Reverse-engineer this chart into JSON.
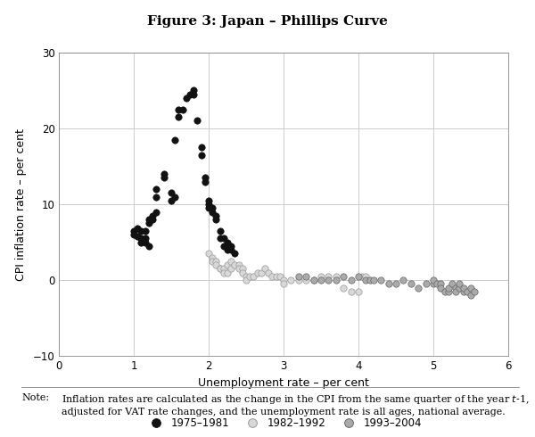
{
  "title": "Figure 3: Japan – Phillips Curve",
  "xlabel": "Unemployment rate – per cent",
  "ylabel": "CPI inflation rate – per cent",
  "xlim": [
    0,
    6
  ],
  "ylim": [
    -10,
    30
  ],
  "xticks": [
    0,
    1,
    2,
    3,
    4,
    5,
    6
  ],
  "yticks": [
    -10,
    0,
    10,
    20,
    30
  ],
  "series": [
    {
      "label": "1975–1981",
      "color": "#111111",
      "edge_color": "#111111",
      "marker": "o",
      "size": 28,
      "x": [
        1.0,
        1.0,
        1.05,
        1.05,
        1.1,
        1.1,
        1.1,
        1.15,
        1.15,
        1.15,
        1.2,
        1.2,
        1.2,
        1.25,
        1.25,
        1.3,
        1.3,
        1.3,
        1.4,
        1.4,
        1.5,
        1.5,
        1.55,
        1.55,
        1.6,
        1.6,
        1.65,
        1.7,
        1.75,
        1.8,
        1.8,
        1.85,
        1.9,
        1.9,
        1.95,
        1.95,
        2.0,
        2.0,
        2.0,
        2.05,
        2.05,
        2.1,
        2.1,
        2.15,
        2.15,
        2.2,
        2.2,
        2.25,
        2.25,
        2.3,
        2.3,
        2.35
      ],
      "y": [
        6.5,
        6.0,
        6.8,
        5.8,
        6.5,
        5.5,
        5.0,
        6.5,
        5.5,
        5.0,
        8.0,
        7.5,
        4.5,
        8.5,
        8.0,
        12.0,
        11.0,
        9.0,
        14.0,
        13.5,
        11.5,
        10.5,
        18.5,
        11.0,
        22.5,
        21.5,
        22.5,
        24.0,
        24.5,
        25.0,
        24.5,
        21.0,
        17.5,
        16.5,
        13.5,
        13.0,
        10.5,
        10.0,
        9.5,
        9.5,
        9.0,
        8.5,
        8.0,
        6.5,
        5.5,
        5.5,
        4.5,
        5.0,
        4.0,
        4.5,
        4.0,
        3.5
      ]
    },
    {
      "label": "1982–1992",
      "color": "#d8d8d8",
      "edge_color": "#999999",
      "marker": "o",
      "size": 28,
      "x": [
        2.0,
        2.05,
        2.05,
        2.1,
        2.1,
        2.15,
        2.15,
        2.2,
        2.2,
        2.25,
        2.25,
        2.3,
        2.3,
        2.35,
        2.4,
        2.4,
        2.45,
        2.45,
        2.5,
        2.5,
        2.55,
        2.6,
        2.65,
        2.7,
        2.75,
        2.8,
        2.85,
        2.9,
        2.95,
        3.0,
        3.0,
        3.1,
        3.2,
        3.3,
        3.4,
        3.5,
        3.6,
        3.7,
        3.8,
        3.9,
        4.0,
        4.05,
        4.1
      ],
      "y": [
        3.5,
        3.0,
        2.5,
        2.5,
        2.0,
        1.5,
        1.5,
        1.5,
        1.0,
        2.0,
        1.0,
        2.5,
        1.5,
        2.0,
        2.0,
        1.5,
        1.5,
        1.0,
        0.5,
        0.0,
        0.5,
        0.5,
        1.0,
        1.0,
        1.5,
        1.0,
        0.5,
        0.5,
        0.5,
        0.0,
        -0.5,
        0.0,
        0.0,
        0.0,
        0.0,
        0.5,
        0.5,
        0.5,
        -1.0,
        -1.5,
        -1.5,
        0.5,
        0.5
      ]
    },
    {
      "label": "1993–2004",
      "color": "#aaaaaa",
      "edge_color": "#666666",
      "marker": "o",
      "size": 28,
      "x": [
        3.2,
        3.3,
        3.4,
        3.5,
        3.6,
        3.7,
        3.8,
        3.9,
        4.0,
        4.1,
        4.15,
        4.2,
        4.3,
        4.4,
        4.5,
        4.6,
        4.7,
        4.8,
        4.9,
        5.0,
        5.0,
        5.05,
        5.1,
        5.1,
        5.15,
        5.2,
        5.2,
        5.25,
        5.3,
        5.3,
        5.35,
        5.35,
        5.4,
        5.4,
        5.45,
        5.5,
        5.5,
        5.55
      ],
      "y": [
        0.5,
        0.5,
        0.0,
        0.0,
        0.0,
        0.0,
        0.5,
        0.0,
        0.5,
        0.0,
        0.0,
        0.0,
        0.0,
        -0.5,
        -0.5,
        0.0,
        -0.5,
        -1.0,
        -0.5,
        -0.5,
        0.0,
        -0.5,
        -0.5,
        -1.0,
        -1.5,
        -1.5,
        -1.0,
        -0.5,
        -1.0,
        -1.5,
        -1.0,
        -0.5,
        -1.5,
        -1.0,
        -1.5,
        -2.0,
        -1.0,
        -1.5
      ]
    }
  ],
  "background_color": "#ffffff",
  "grid_color": "#cccccc",
  "note_label": "Note:",
  "note_body": "Inflation rates are calculated as the change in the CPI from the same quarter of the year $t$-1,\nadjusted for VAT rate changes, and the unemployment rate is all ages, national average."
}
